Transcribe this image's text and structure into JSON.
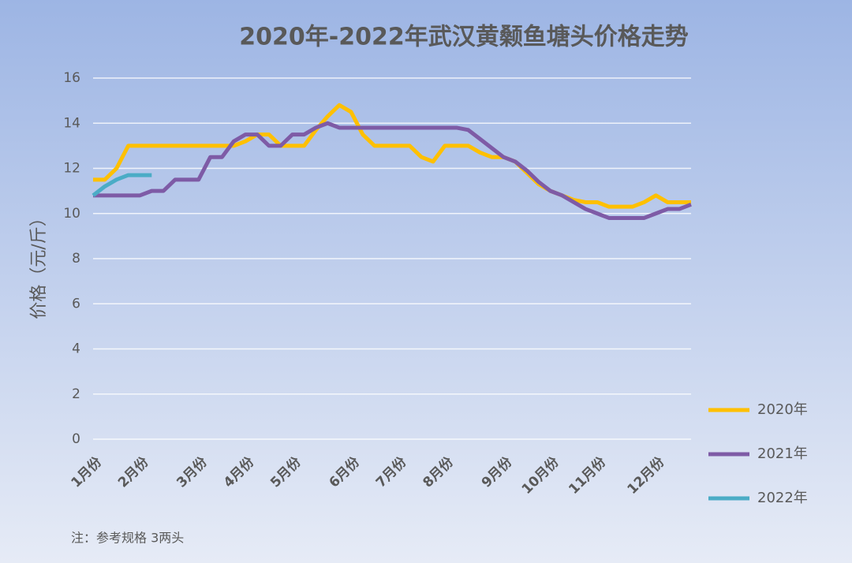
{
  "chart_data": {
    "type": "line",
    "title": "2020年-2022年武汉黄颡鱼塘头价格走势",
    "y_label": "价格（元/斤）",
    "note": "注：参考规格  3两头",
    "categories": [
      "1月份",
      null,
      null,
      null,
      "2月份",
      null,
      null,
      null,
      null,
      "3月份",
      null,
      null,
      null,
      "4月份",
      null,
      null,
      null,
      "5月份",
      null,
      null,
      null,
      null,
      "6月份",
      null,
      null,
      null,
      "7月份",
      null,
      null,
      null,
      "8月份",
      null,
      null,
      null,
      null,
      "9月份",
      null,
      null,
      null,
      "10月份",
      null,
      null,
      null,
      "11月份",
      null,
      null,
      null,
      null,
      "12月份",
      null,
      null,
      null
    ],
    "series": [
      {
        "name": "2020年",
        "color": "#ffc000",
        "values": [
          11.5,
          11.5,
          12,
          13,
          13,
          13,
          13,
          13,
          13,
          13,
          13,
          13,
          13,
          13.2,
          13.5,
          13.5,
          13,
          13,
          13,
          13.7,
          14.3,
          14.8,
          14.5,
          13.5,
          13,
          13,
          13,
          13,
          12.5,
          12.3,
          13,
          13,
          13,
          12.7,
          12.5,
          12.5,
          12.3,
          11.8,
          11.3,
          11,
          10.8,
          10.6,
          10.5,
          10.5,
          10.3,
          10.3,
          10.3,
          10.5,
          10.8,
          10.5,
          10.5,
          10.5
        ]
      },
      {
        "name": "2021年",
        "color": "#7e5ba6",
        "values": [
          10.8,
          10.8,
          10.8,
          10.8,
          10.8,
          11,
          11,
          11.5,
          11.5,
          11.5,
          12.5,
          12.5,
          13.2,
          13.5,
          13.5,
          13,
          13,
          13.5,
          13.5,
          13.8,
          14,
          13.8,
          13.8,
          13.8,
          13.8,
          13.8,
          13.8,
          13.8,
          13.8,
          13.8,
          13.8,
          13.8,
          13.7,
          13.3,
          12.9,
          12.5,
          12.3,
          11.9,
          11.4,
          11,
          10.8,
          10.5,
          10.2,
          10,
          9.8,
          9.8,
          9.8,
          9.8,
          10,
          10.2,
          10.2,
          10.4
        ]
      },
      {
        "name": "2022年",
        "color": "#4bacc6",
        "values": [
          10.8,
          11.2,
          11.5,
          11.7,
          11.7,
          11.7,
          null,
          null,
          null,
          null,
          null,
          null,
          null,
          null,
          null,
          null,
          null,
          null,
          null,
          null,
          null,
          null,
          null,
          null,
          null,
          null,
          null,
          null,
          null,
          null,
          null,
          null,
          null,
          null,
          null,
          null,
          null,
          null,
          null,
          null,
          null,
          null,
          null,
          null,
          null,
          null,
          null,
          null,
          null,
          null,
          null,
          null
        ]
      }
    ],
    "ylim": [
      0,
      16
    ],
    "yticks": [
      0,
      2,
      4,
      6,
      8,
      10,
      12,
      14,
      16
    ],
    "grid": true,
    "legend": "right"
  }
}
